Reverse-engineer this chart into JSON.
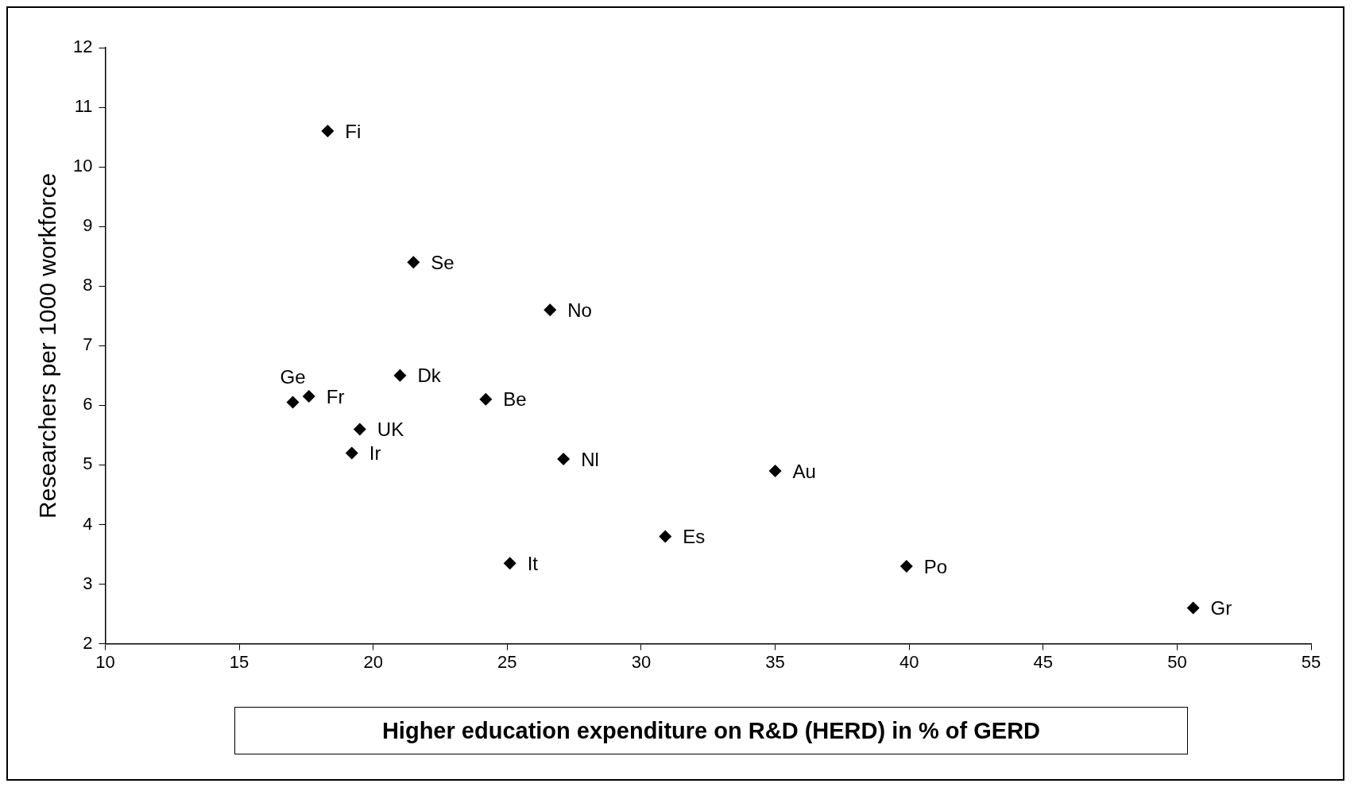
{
  "chart_data": {
    "type": "scatter",
    "xlabel": "Higher education expenditure on R&D (HERD) in % of GERD",
    "ylabel": "Researchers per 1000 workforce",
    "x": [
      18.3,
      21.5,
      26.6,
      21.0,
      17.6,
      17.0,
      24.2,
      19.5,
      19.2,
      27.1,
      35.0,
      30.9,
      25.1,
      39.9,
      50.6
    ],
    "series": [
      {
        "color": "#000000",
        "values": [
          10.6,
          8.4,
          7.6,
          6.5,
          6.15,
          6.05,
          6.1,
          5.6,
          5.2,
          5.1,
          4.9,
          3.8,
          3.35,
          3.3,
          2.6
        ]
      }
    ],
    "annotations": [
      {
        "text": "Fi",
        "x": 18.3,
        "y": 10.6
      },
      {
        "text": "Se",
        "x": 21.5,
        "y": 8.4
      },
      {
        "text": "No",
        "x": 26.6,
        "y": 7.6
      },
      {
        "text": "Dk",
        "x": 21.0,
        "y": 6.5
      },
      {
        "text": "Fr",
        "x": 17.6,
        "y": 6.15
      },
      {
        "text": "Ge",
        "x": 17.0,
        "y": 6.05
      },
      {
        "text": "Be",
        "x": 24.2,
        "y": 6.1
      },
      {
        "text": "UK",
        "x": 19.5,
        "y": 5.6
      },
      {
        "text": "Ir",
        "x": 19.2,
        "y": 5.2
      },
      {
        "text": "Nl",
        "x": 27.1,
        "y": 5.1
      },
      {
        "text": "Au",
        "x": 35.0,
        "y": 4.9
      },
      {
        "text": "Es",
        "x": 30.9,
        "y": 3.8
      },
      {
        "text": "It",
        "x": 25.1,
        "y": 3.35
      },
      {
        "text": "Po",
        "x": 39.9,
        "y": 3.3
      },
      {
        "text": "Gr",
        "x": 50.6,
        "y": 2.6
      }
    ],
    "xlim": [
      10,
      55
    ],
    "xticks": [
      10,
      15,
      20,
      25,
      30,
      35,
      40,
      45,
      50,
      55
    ],
    "ylim": [
      2,
      12
    ],
    "yticks": [
      2,
      3,
      4,
      5,
      6,
      7,
      8,
      9,
      10,
      11,
      12
    ],
    "grid": false,
    "legend": false,
    "marker": "diamond"
  }
}
